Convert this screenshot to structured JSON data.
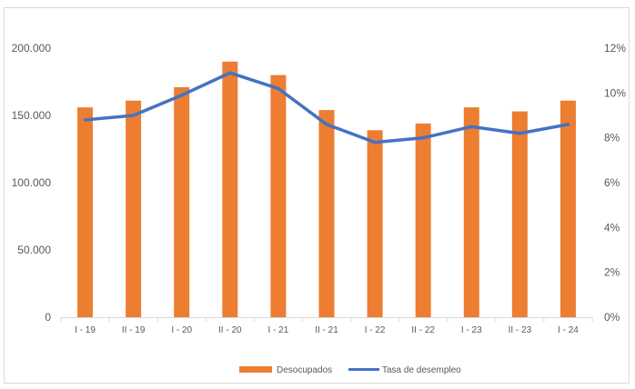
{
  "chart_data": {
    "type": "bar+line",
    "categories": [
      "I - 19",
      "II - 19",
      "I - 20",
      "II - 20",
      "I - 21",
      "II - 21",
      "I - 22",
      "II - 22",
      "I - 23",
      "II - 23",
      "I - 24"
    ],
    "series": [
      {
        "name": "Desocupados",
        "type": "bar",
        "axis": "left",
        "color": "#ed7d31",
        "values": [
          156000,
          161000,
          171000,
          190000,
          180000,
          154000,
          139000,
          144000,
          156000,
          153000,
          161000
        ]
      },
      {
        "name": "Tasa de desempleo",
        "type": "line",
        "axis": "right",
        "color": "#4472c4",
        "values": [
          0.088,
          0.09,
          0.099,
          0.109,
          0.102,
          0.086,
          0.078,
          0.08,
          0.085,
          0.082,
          0.086
        ]
      }
    ],
    "y_left": {
      "min": 0,
      "max": 200000,
      "ticks": [
        0,
        50000,
        100000,
        150000,
        200000
      ],
      "tick_labels": [
        "0",
        "50.000",
        "100.000",
        "150.000",
        "200.000"
      ]
    },
    "y_right": {
      "min": 0,
      "max": 0.12,
      "ticks": [
        0,
        0.02,
        0.04,
        0.06,
        0.08,
        0.1,
        0.12
      ],
      "tick_labels": [
        "0%",
        "2%",
        "4%",
        "6%",
        "8%",
        "10%",
        "12%"
      ]
    },
    "grid": false,
    "legend": {
      "position": "bottom",
      "items": [
        "Desocupados",
        "Tasa de desempleo"
      ]
    }
  }
}
